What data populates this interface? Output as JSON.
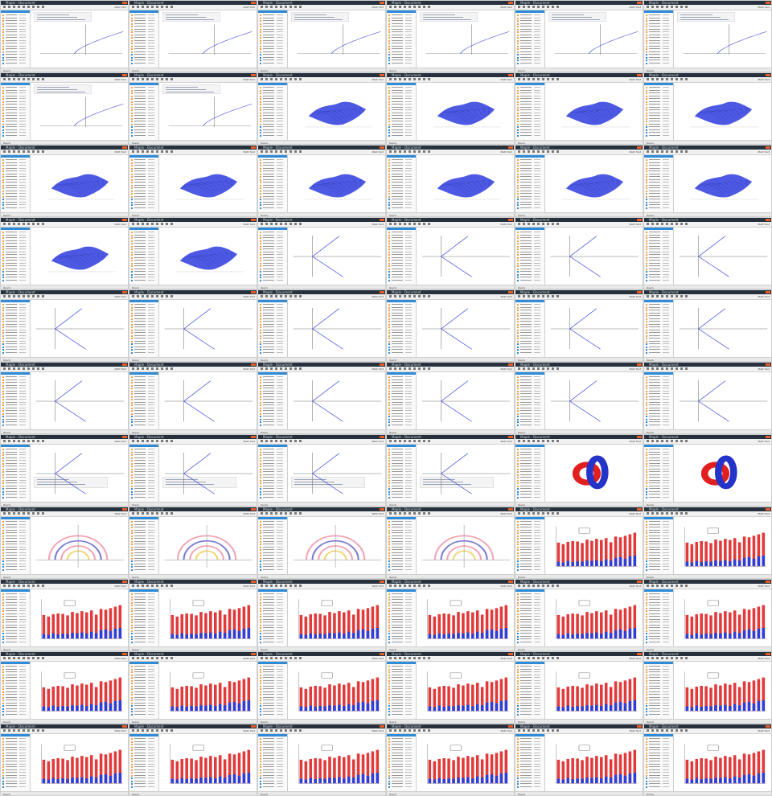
{
  "screenshot": {
    "kind": "contact-sheet",
    "rows": 11,
    "cols": 6
  },
  "app": {
    "title": "Maple - Document",
    "menu": [
      "File",
      "Edit",
      "View",
      "Insert",
      "Format",
      "Table",
      "Drawing",
      "Plot",
      "Spreadsheet",
      "Tools",
      "Window",
      "Help"
    ],
    "palette_header": "Expression",
    "status_text": "Ready",
    "toolbar_right": "Math  Text"
  },
  "colors": {
    "titlebar": "#26313d",
    "accent_blue": "#2f8ad8",
    "curve_blue": "#3a47e0",
    "bar_red": "#e23a3a",
    "bar_blue": "#2d3fd6",
    "spiral_pink": "#f3a3b6",
    "spiral_yellow": "#f1d46b",
    "spiral_purple": "#7b7bd6",
    "knot_red": "#e11f1f",
    "knot_blue": "#2433c8"
  },
  "content_types": {
    "line_plot": "line-plot",
    "surface3d": "surface-3d",
    "vplot": "v-plot",
    "vplot_code": "v-plot-with-code",
    "knot": "knot-3d",
    "spiral": "spiral-plot",
    "bars": "stacked-bars"
  },
  "tiles": [
    {
      "type": "line_plot"
    },
    {
      "type": "line_plot"
    },
    {
      "type": "line_plot"
    },
    {
      "type": "line_plot"
    },
    {
      "type": "line_plot"
    },
    {
      "type": "line_plot"
    },
    {
      "type": "line_plot"
    },
    {
      "type": "line_plot"
    },
    {
      "type": "surface3d"
    },
    {
      "type": "surface3d"
    },
    {
      "type": "surface3d"
    },
    {
      "type": "surface3d"
    },
    {
      "type": "surface3d"
    },
    {
      "type": "surface3d"
    },
    {
      "type": "surface3d"
    },
    {
      "type": "surface3d"
    },
    {
      "type": "surface3d"
    },
    {
      "type": "surface3d"
    },
    {
      "type": "surface3d"
    },
    {
      "type": "surface3d"
    },
    {
      "type": "vplot"
    },
    {
      "type": "vplot"
    },
    {
      "type": "vplot"
    },
    {
      "type": "vplot"
    },
    {
      "type": "vplot"
    },
    {
      "type": "vplot"
    },
    {
      "type": "vplot"
    },
    {
      "type": "vplot"
    },
    {
      "type": "vplot"
    },
    {
      "type": "vplot"
    },
    {
      "type": "vplot"
    },
    {
      "type": "vplot"
    },
    {
      "type": "vplot"
    },
    {
      "type": "vplot"
    },
    {
      "type": "vplot"
    },
    {
      "type": "vplot"
    },
    {
      "type": "vplot_code"
    },
    {
      "type": "vplot_code"
    },
    {
      "type": "vplot_code"
    },
    {
      "type": "vplot_code"
    },
    {
      "type": "knot"
    },
    {
      "type": "knot"
    },
    {
      "type": "spiral"
    },
    {
      "type": "spiral"
    },
    {
      "type": "spiral"
    },
    {
      "type": "spiral"
    },
    {
      "type": "bars"
    },
    {
      "type": "bars"
    },
    {
      "type": "bars"
    },
    {
      "type": "bars"
    },
    {
      "type": "bars"
    },
    {
      "type": "bars"
    },
    {
      "type": "bars"
    },
    {
      "type": "bars"
    },
    {
      "type": "bars"
    },
    {
      "type": "bars"
    },
    {
      "type": "bars"
    },
    {
      "type": "bars"
    },
    {
      "type": "bars"
    },
    {
      "type": "bars"
    },
    {
      "type": "bars"
    },
    {
      "type": "bars"
    },
    {
      "type": "bars"
    },
    {
      "type": "bars"
    },
    {
      "type": "bars"
    },
    {
      "type": "bars"
    }
  ],
  "bar_chart": {
    "type": "bar",
    "red_values": [
      62,
      58,
      64,
      66,
      65,
      61,
      70,
      67,
      72,
      69,
      74,
      63,
      78,
      76,
      80,
      84,
      88
    ],
    "blue_values": [
      12,
      10,
      14,
      11,
      13,
      12,
      15,
      14,
      16,
      13,
      18,
      15,
      22,
      24,
      20,
      26,
      28
    ],
    "ylim": [
      0,
      100
    ],
    "legend": true
  }
}
